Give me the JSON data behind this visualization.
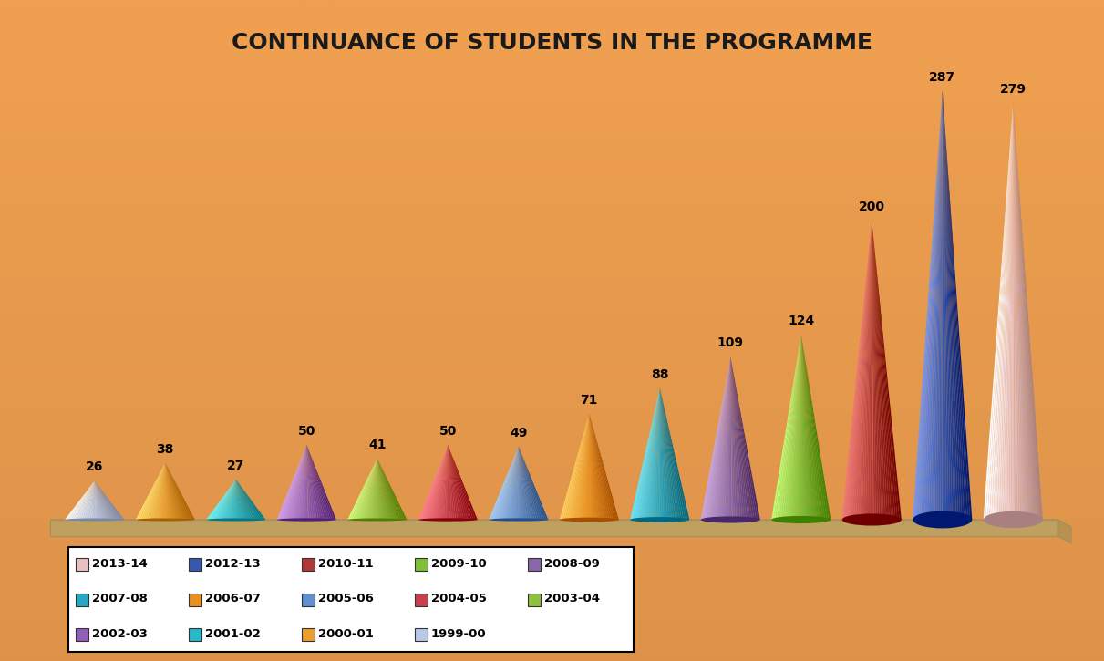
{
  "title": "CONTINUANCE OF STUDENTS IN THE PROGRAMME",
  "categories": [
    "1999-00",
    "2000-01",
    "2001-02",
    "2002-03",
    "2003-04",
    "2004-05",
    "2005-06",
    "2006-07",
    "2007-08",
    "2008-09",
    "2009-10",
    "2010-11",
    "2012-13",
    "2013-14"
  ],
  "values": [
    26,
    38,
    27,
    50,
    41,
    50,
    49,
    71,
    88,
    109,
    124,
    200,
    287,
    279
  ],
  "colors_main": [
    "#b8c8e8",
    "#e8a030",
    "#28b8c8",
    "#9060b8",
    "#90c040",
    "#c84050",
    "#6090d0",
    "#e89020",
    "#28a8c0",
    "#8868a8",
    "#80c038",
    "#b03838",
    "#3858b0",
    "#e8c0c0"
  ],
  "background_color": "#f0a050",
  "platform_top": "#d4b87a",
  "platform_side": "#c0a060",
  "platform_edge": "#b89050",
  "legend_labels": [
    "2013-14",
    "2012-13",
    "2010-11",
    "2009-10",
    "2008-09",
    "2007-08",
    "2006-07",
    "2005-06",
    "2004-05",
    "2003-04",
    "2002-03",
    "2001-02",
    "2000-01",
    "1999-00"
  ],
  "legend_colors": [
    "#e8c0c0",
    "#3858b0",
    "#b03838",
    "#80c038",
    "#8868a8",
    "#28a8c0",
    "#e89020",
    "#6090d0",
    "#c84050",
    "#90c040",
    "#9060b8",
    "#28b8c8",
    "#e8a030",
    "#b8c8e8"
  ]
}
